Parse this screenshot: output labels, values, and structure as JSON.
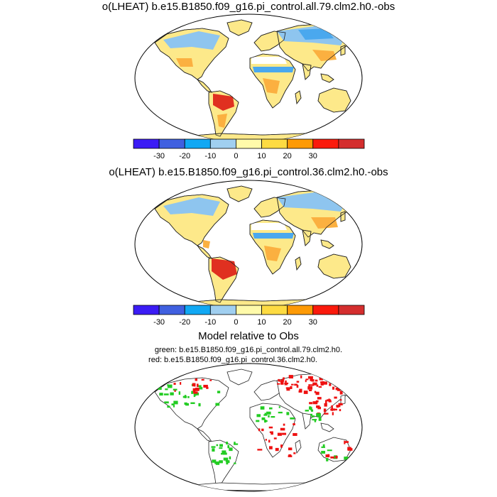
{
  "panel1": {
    "title": "o(LHEAT) b.e15.B1850.f09_g16.pi_control.all.79.clm2.h0.-obs"
  },
  "panel2": {
    "title": "o(LHEAT) b.e15.B1850.f09_g16.pi_control.36.clm2.h0.-obs"
  },
  "panel3": {
    "title": "Model relative to Obs",
    "green_note": "green: b.e15.B1850.f09_g16.pi_control.all.79.clm2.h0.",
    "red_note": "red: b.e15.B1850.f09_g16.pi_control.36.clm2.h0."
  },
  "colorbar": {
    "colors": [
      "#3b1cf5",
      "#4060e0",
      "#11a8f4",
      "#a0cff0",
      "#fffaaa",
      "#fddb42",
      "#fd9a05",
      "#fa1a0c",
      "#d42e2e"
    ],
    "tick_labels": [
      "-30",
      "-20",
      "-10",
      "0",
      "10",
      "20",
      "30"
    ]
  },
  "marker_colors": {
    "green": "#22cc22",
    "red": "#ee1111"
  }
}
